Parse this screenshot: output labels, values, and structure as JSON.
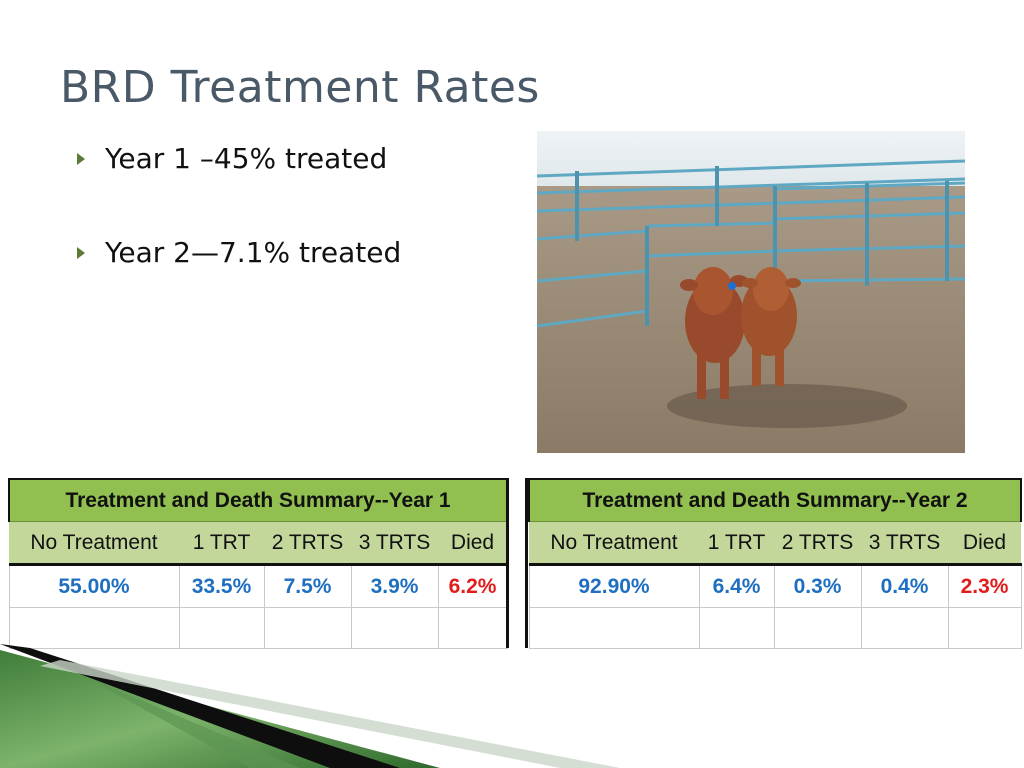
{
  "slide": {
    "title": "BRD Treatment Rates",
    "bullets": [
      "Year 1 –45% treated",
      "Year 2—7.1% treated"
    ]
  },
  "photo": {
    "description": "two red calves in a feedlot pen"
  },
  "tables": [
    {
      "title": "Treatment and Death Summary--Year 1",
      "columns": [
        "No Treatment",
        "1 TRT",
        "2 TRTS",
        "3 TRTS",
        "Died"
      ],
      "values": [
        "55.00%",
        "33.5%",
        "7.5%",
        "3.9%",
        "6.2%"
      ]
    },
    {
      "title": "Treatment and Death Summary--Year 2",
      "columns": [
        "No Treatment",
        "1 TRT",
        "2 TRTS",
        "3 TRTS",
        "Died"
      ],
      "values": [
        "92.90%",
        "6.4%",
        "0.3%",
        "0.4%",
        "2.3%"
      ]
    }
  ],
  "colors": {
    "title": "#4a5968",
    "header_green": "#92c050",
    "column_green": "#c4d79b",
    "value_blue": "#1f6fc1",
    "died_red": "#e21b1b"
  }
}
